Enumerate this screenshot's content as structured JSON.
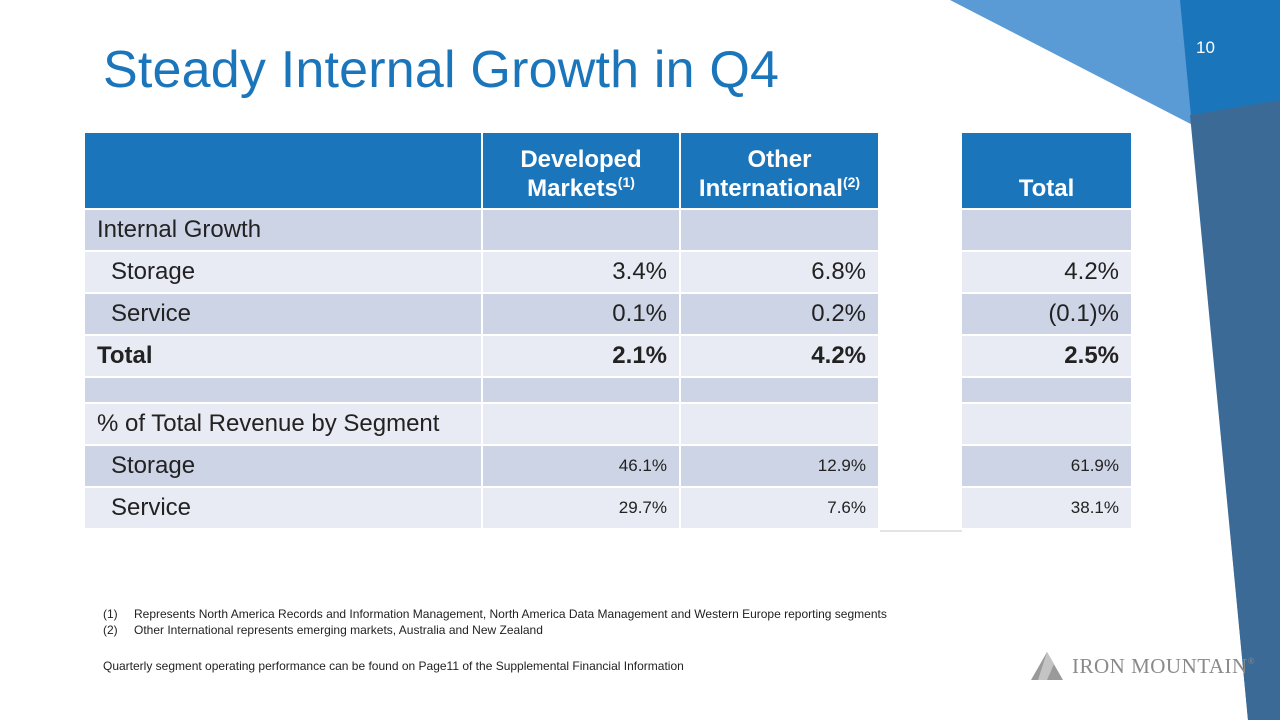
{
  "slide": {
    "page_number": "10",
    "title": "Steady Internal Growth in Q4"
  },
  "table": {
    "headers": {
      "col1_line1": "Developed",
      "col1_line2": "Markets",
      "col1_sup": "(1)",
      "col2_line1": "Other",
      "col2_line2": "International",
      "col2_sup": "(2)",
      "col3": "Total"
    },
    "rows": {
      "internal_growth": {
        "label": "Internal Growth"
      },
      "storage_growth": {
        "label": "Storage",
        "developed": "3.4%",
        "international": "6.8%",
        "total": "4.2%"
      },
      "service_growth": {
        "label": "Service",
        "developed": "0.1%",
        "international": "0.2%",
        "total": "(0.1)%"
      },
      "total_growth": {
        "label": "Total",
        "developed": "2.1%",
        "international": "4.2%",
        "total": "2.5%"
      },
      "revenue_header": {
        "label": "% of Total Revenue by Segment"
      },
      "storage_revenue": {
        "label": "Storage",
        "developed": "46.1%",
        "international": "12.9%",
        "total": "61.9%"
      },
      "service_revenue": {
        "label": "Service",
        "developed": "29.7%",
        "international": "7.6%",
        "total": "38.1%"
      }
    }
  },
  "footnotes": [
    {
      "num": "(1)",
      "text": "Represents North America Records and Information Management, North America Data Management and Western Europe reporting segments"
    },
    {
      "num": "(2)",
      "text": "Other International represents emerging markets, Australia and New Zealand"
    }
  ],
  "source_note": "Quarterly segment operating performance can be found on Page11 of the Supplemental Financial Information",
  "logo": {
    "text": "IRON MOUNTAIN",
    "reg": "®"
  },
  "colors": {
    "accent": "#1b75bb",
    "band_dark": "#cdd4e6",
    "band_light": "#e8ebf4",
    "gray_column": "#e4e4e4"
  }
}
